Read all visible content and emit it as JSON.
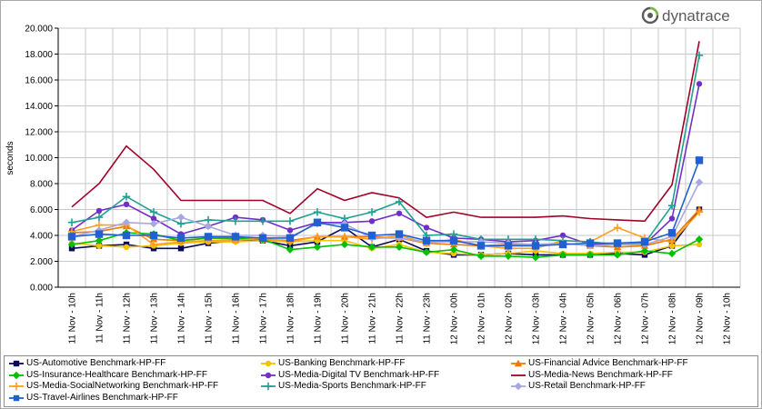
{
  "brand": {
    "name": "dynatrace",
    "color": "#5b5b5b",
    "accent": "#7ab648"
  },
  "chart_data": {
    "type": "line",
    "title": "",
    "xlabel": "",
    "ylabel": "seconds",
    "ylim": [
      0,
      20
    ],
    "y_ticks": [
      "0.000",
      "2.000",
      "4.000",
      "6.000",
      "8.000",
      "10.000",
      "12.000",
      "14.000",
      "16.000",
      "18.000",
      "20.000"
    ],
    "grid": true,
    "legend_position": "bottom",
    "categories": [
      "11 Nov - 10h",
      "11 Nov - 11h",
      "11 Nov - 12h",
      "11 Nov - 13h",
      "11 Nov - 14h",
      "11 Nov - 15h",
      "11 Nov - 16h",
      "11 Nov - 17h",
      "11 Nov - 18h",
      "11 Nov - 19h",
      "11 Nov - 20h",
      "11 Nov - 21h",
      "11 Nov - 22h",
      "11 Nov - 23h",
      "12 Nov - 00h",
      "12 Nov - 01h",
      "12 Nov - 02h",
      "12 Nov - 03h",
      "12 Nov - 04h",
      "12 Nov - 05h",
      "12 Nov - 06h",
      "12 Nov - 07h",
      "12 Nov - 08h",
      "12 Nov - 09h",
      "12 Nov - 10h"
    ],
    "series": [
      {
        "name": "US-Automotive Benchmark-HP-FF",
        "color": "#0a0a5a",
        "marker": "square",
        "values": [
          3.0,
          3.2,
          3.3,
          3.0,
          3.0,
          3.4,
          3.6,
          3.6,
          3.2,
          3.5,
          4.6,
          3.1,
          3.7,
          2.8,
          2.5,
          2.5,
          2.6,
          2.5,
          2.5,
          2.5,
          2.6,
          2.5,
          3.2,
          6.0,
          null
        ]
      },
      {
        "name": "US-Banking Benchmark-HP-FF",
        "color": "#f2c500",
        "marker": "circle",
        "values": [
          3.4,
          3.2,
          3.1,
          3.2,
          3.4,
          3.5,
          3.5,
          3.6,
          3.5,
          3.6,
          3.6,
          3.0,
          3.3,
          2.7,
          2.6,
          2.5,
          2.6,
          2.8,
          2.6,
          2.6,
          2.7,
          2.7,
          3.2,
          3.3,
          null
        ]
      },
      {
        "name": "US-Financial Advice Benchmark-HP-FF",
        "color": "#f07800",
        "marker": "triangle",
        "values": [
          4.2,
          4.3,
          4.7,
          3.7,
          3.6,
          3.8,
          3.7,
          3.7,
          3.6,
          3.9,
          3.9,
          3.9,
          3.8,
          3.4,
          3.3,
          3.2,
          3.3,
          3.3,
          3.4,
          3.2,
          3.1,
          3.2,
          3.7,
          6.0,
          null
        ]
      },
      {
        "name": "US-Insurance-Healthcare Benchmark-HP-FF",
        "color": "#00c000",
        "marker": "diamond",
        "values": [
          3.3,
          3.6,
          4.2,
          4.1,
          3.6,
          3.8,
          3.8,
          3.7,
          2.9,
          3.1,
          3.3,
          3.1,
          3.1,
          2.7,
          2.9,
          2.4,
          2.4,
          2.3,
          2.5,
          2.5,
          2.5,
          2.8,
          2.6,
          3.7,
          null
        ]
      },
      {
        "name": "US-Media-Digital TV Benchmark-HP-FF",
        "color": "#7030c8",
        "marker": "circle",
        "values": [
          4.4,
          5.9,
          6.4,
          5.3,
          4.1,
          4.7,
          5.4,
          5.2,
          4.4,
          5.0,
          5.0,
          5.1,
          5.7,
          4.6,
          3.8,
          3.7,
          3.5,
          3.6,
          4.0,
          3.3,
          3.3,
          3.3,
          5.3,
          15.7,
          null
        ]
      },
      {
        "name": "US-Media-News Benchmark-HP-FF",
        "color": "#a00028",
        "marker": "none",
        "values": [
          6.2,
          8.0,
          10.9,
          9.1,
          6.7,
          6.7,
          6.7,
          6.7,
          5.7,
          7.6,
          6.7,
          7.3,
          6.9,
          5.4,
          5.8,
          5.4,
          5.4,
          5.4,
          5.5,
          5.3,
          5.2,
          5.1,
          7.9,
          19.0,
          null
        ]
      },
      {
        "name": "US-Media-SocialNetworking Benchmark-HP-FF",
        "color": "#ffa020",
        "marker": "plus",
        "values": [
          4.3,
          4.8,
          4.8,
          3.3,
          3.5,
          3.6,
          3.6,
          3.8,
          3.5,
          3.9,
          3.9,
          3.7,
          4.0,
          3.4,
          3.7,
          3.2,
          3.0,
          3.0,
          3.6,
          3.5,
          4.6,
          3.8,
          3.5,
          5.8,
          null
        ]
      },
      {
        "name": "US-Media-Sports Benchmark-HP-FF",
        "color": "#20a090",
        "marker": "plus",
        "values": [
          5.0,
          5.4,
          7.0,
          5.8,
          4.9,
          5.2,
          5.1,
          5.1,
          5.1,
          5.8,
          5.3,
          5.8,
          6.6,
          4.0,
          4.1,
          3.7,
          3.7,
          3.7,
          3.6,
          3.5,
          3.3,
          3.4,
          6.3,
          17.9,
          null
        ]
      },
      {
        "name": "US-Retail Benchmark-HP-FF",
        "color": "#a8a8e0",
        "marker": "diamond",
        "values": [
          3.9,
          4.4,
          5.0,
          4.9,
          5.4,
          4.7,
          4.0,
          4.0,
          3.9,
          4.9,
          4.9,
          3.8,
          3.8,
          3.5,
          3.5,
          3.5,
          3.4,
          3.3,
          3.4,
          3.2,
          3.3,
          3.3,
          3.9,
          8.1,
          null
        ]
      },
      {
        "name": "US-Travel-Airlines Benchmark-HP-FF",
        "color": "#2060d0",
        "marker": "square",
        "values": [
          3.9,
          4.1,
          4.0,
          4.0,
          3.8,
          3.9,
          3.9,
          3.8,
          3.8,
          5.0,
          4.6,
          4.0,
          4.1,
          3.6,
          3.6,
          3.2,
          3.2,
          3.2,
          3.3,
          3.4,
          3.4,
          3.5,
          4.2,
          9.8,
          null
        ]
      }
    ]
  }
}
